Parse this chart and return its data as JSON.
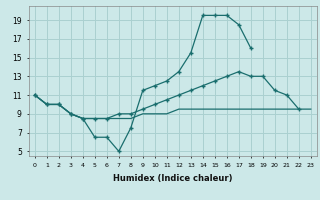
{
  "xlabel": "Humidex (Indice chaleur)",
  "background_color": "#cce8e8",
  "grid_color": "#aad0d0",
  "line_color": "#1a6e6e",
  "xlim_min": -0.5,
  "xlim_max": 23.5,
  "ylim_min": 4.5,
  "ylim_max": 20.5,
  "xticks": [
    0,
    1,
    2,
    3,
    4,
    5,
    6,
    7,
    8,
    9,
    10,
    11,
    12,
    13,
    14,
    15,
    16,
    17,
    18,
    19,
    20,
    21,
    22,
    23
  ],
  "yticks": [
    5,
    7,
    9,
    11,
    13,
    15,
    17,
    19
  ],
  "s1_x": [
    0,
    1,
    2,
    3,
    4,
    5,
    6,
    7,
    8,
    9,
    10,
    11,
    12,
    13,
    14,
    15,
    16,
    17,
    18
  ],
  "s1_y": [
    11,
    10,
    10,
    9,
    8.5,
    6.5,
    6.5,
    5,
    7.5,
    11.5,
    12,
    12.5,
    13.5,
    15.5,
    19.5,
    19.5,
    19.5,
    18.5,
    16
  ],
  "s2_x": [
    0,
    1,
    2,
    3,
    4,
    5,
    6,
    7,
    8,
    9,
    10,
    11,
    12,
    13,
    14,
    15,
    16,
    17,
    18,
    19,
    20,
    21,
    22
  ],
  "s2_y": [
    11,
    10,
    10,
    9,
    8.5,
    8.5,
    8.5,
    9,
    9,
    9.5,
    10,
    10.5,
    11,
    11.5,
    12,
    12.5,
    13,
    13.5,
    13,
    13,
    11.5,
    11,
    9.5
  ],
  "s3_x": [
    0,
    1,
    2,
    3,
    4,
    5,
    6,
    7,
    8,
    9,
    10,
    11,
    12,
    13,
    14,
    15,
    16,
    17,
    18,
    19,
    20,
    21,
    22,
    23
  ],
  "s3_y": [
    11,
    10,
    10,
    9,
    8.5,
    8.5,
    8.5,
    8.5,
    8.5,
    9,
    9,
    9,
    9.5,
    9.5,
    9.5,
    9.5,
    9.5,
    9.5,
    9.5,
    9.5,
    9.5,
    9.5,
    9.5,
    9.5
  ]
}
